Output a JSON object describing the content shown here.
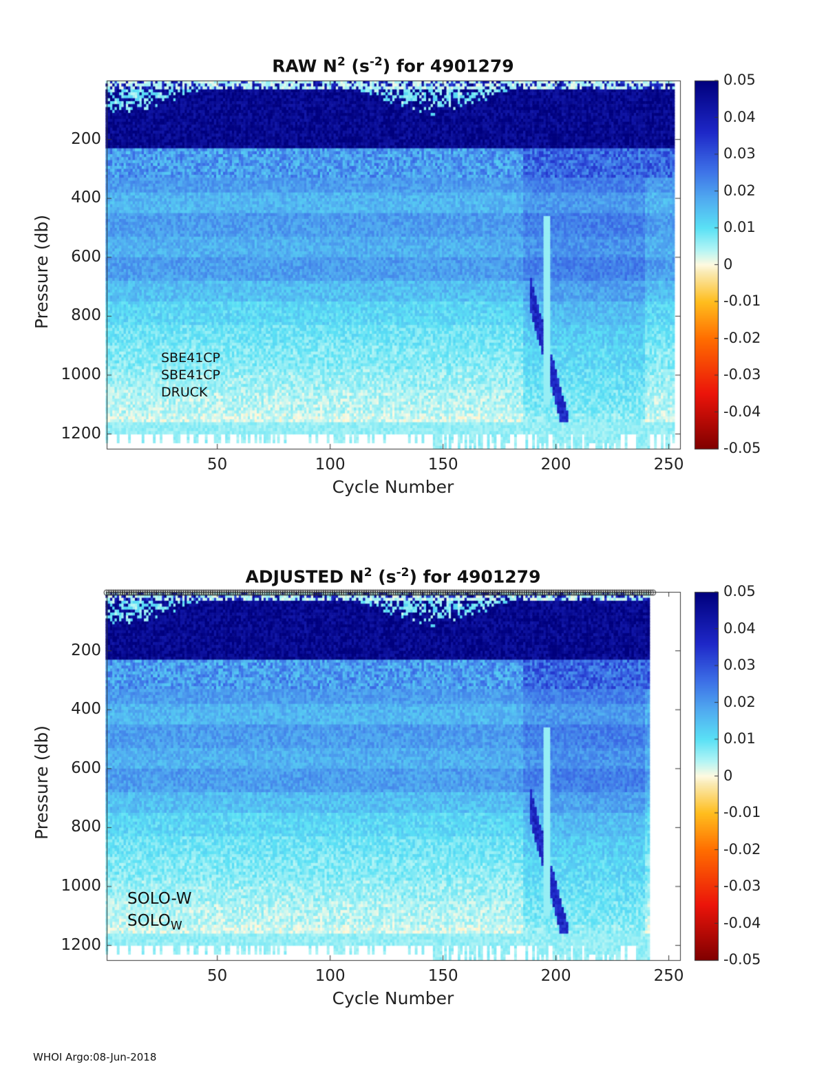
{
  "chart_data": [
    {
      "type": "heatmap",
      "title_main": "RAW N",
      "title_sup1": "2",
      "title_mid": " (s",
      "title_sup2": "-2",
      "title_end": ") for 4901279",
      "xlabel": "Cycle Number",
      "ylabel": "Pressure (db)",
      "xlim": [
        1,
        255
      ],
      "ylim": [
        1250,
        0
      ],
      "xticks": [
        "50",
        "100",
        "150",
        "200",
        "250"
      ],
      "yticks": [
        "200",
        "400",
        "600",
        "800",
        "1000",
        "1200"
      ],
      "colorbar": {
        "clim": [
          -0.05,
          0.05
        ],
        "ticks": [
          "0.05",
          "0.04",
          "0.03",
          "0.02",
          "0.01",
          "0",
          "-0.01",
          "-0.02",
          "-0.03",
          "-0.04",
          "-0.05"
        ]
      },
      "annotations": [
        "SBE41CP",
        "SBE41CP",
        "DRUCK"
      ]
    },
    {
      "type": "heatmap",
      "title_main": "ADJUSTED N",
      "title_sup1": "2",
      "title_mid": " (s",
      "title_sup2": "-2",
      "title_end": ") for 4901279",
      "xlabel": "Cycle Number",
      "ylabel": "Pressure (db)",
      "xlim": [
        1,
        255
      ],
      "ylim": [
        1250,
        0
      ],
      "xticks": [
        "50",
        "100",
        "150",
        "200",
        "250"
      ],
      "yticks": [
        "200",
        "400",
        "600",
        "800",
        "1000",
        "1200"
      ],
      "colorbar": {
        "clim": [
          -0.05,
          0.05
        ],
        "ticks": [
          "0.05",
          "0.04",
          "0.03",
          "0.02",
          "0.01",
          "0",
          "-0.01",
          "-0.02",
          "-0.03",
          "-0.04",
          "-0.05"
        ]
      },
      "annotations": [
        "SOLO-W",
        "SOLO",
        "W"
      ],
      "marker_row": "open circles along top at each cycle"
    }
  ],
  "footer": "WHOI Argo:08-Jun-2018"
}
